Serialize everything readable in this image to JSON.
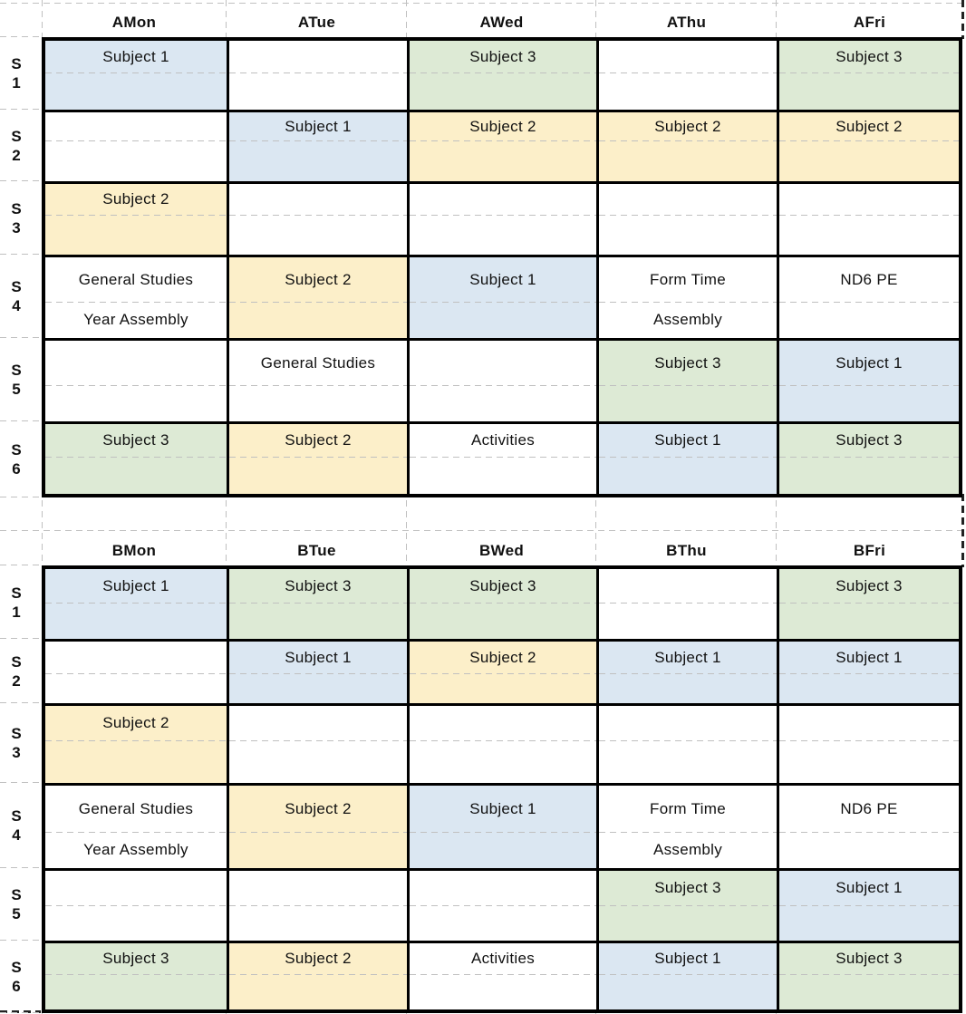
{
  "cell_colors": {
    "blue": "#dbe7f2",
    "green": "#ddead5",
    "yellow": "#fcefc9",
    "white": "#ffffff"
  },
  "tables": [
    {
      "week_label": "A",
      "day_headers": [
        "AMon",
        "ATue",
        "AWed",
        "AThu",
        "AFri"
      ],
      "rows": [
        {
          "period": [
            "S",
            "1"
          ],
          "cells": [
            {
              "lines": [
                "Subject 1"
              ],
              "color": "blue"
            },
            {
              "lines": [],
              "color": "white"
            },
            {
              "lines": [
                "Subject 3"
              ],
              "color": "green"
            },
            {
              "lines": [],
              "color": "white"
            },
            {
              "lines": [
                "Subject 3"
              ],
              "color": "green"
            }
          ]
        },
        {
          "period": [
            "S",
            "2"
          ],
          "cells": [
            {
              "lines": [],
              "color": "white"
            },
            {
              "lines": [
                "Subject 1"
              ],
              "color": "blue"
            },
            {
              "lines": [
                "Subject 2"
              ],
              "color": "yellow"
            },
            {
              "lines": [
                "Subject 2"
              ],
              "color": "yellow"
            },
            {
              "lines": [
                "Subject 2"
              ],
              "color": "yellow"
            }
          ]
        },
        {
          "period": [
            "S",
            "3"
          ],
          "cells": [
            {
              "lines": [
                "Subject 2"
              ],
              "color": "yellow"
            },
            {
              "lines": [],
              "color": "white"
            },
            {
              "lines": [],
              "color": "white"
            },
            {
              "lines": [],
              "color": "white"
            },
            {
              "lines": [],
              "color": "white"
            }
          ]
        },
        {
          "period": [
            "S",
            "4"
          ],
          "cells": [
            {
              "lines": [
                "General Studies",
                "Year Assembly"
              ],
              "color": "white"
            },
            {
              "lines": [
                "Subject 2"
              ],
              "color": "yellow"
            },
            {
              "lines": [
                "Subject 1"
              ],
              "color": "blue"
            },
            {
              "lines": [
                "Form Time",
                "Assembly"
              ],
              "color": "white"
            },
            {
              "lines": [
                "ND6 PE"
              ],
              "color": "white"
            }
          ]
        },
        {
          "period": [
            "S",
            "5"
          ],
          "cells": [
            {
              "lines": [],
              "color": "white"
            },
            {
              "lines": [
                "General Studies"
              ],
              "color": "white"
            },
            {
              "lines": [],
              "color": "white"
            },
            {
              "lines": [
                "Subject 3"
              ],
              "color": "green"
            },
            {
              "lines": [
                "Subject 1"
              ],
              "color": "blue"
            }
          ]
        },
        {
          "period": [
            "S",
            "6"
          ],
          "cells": [
            {
              "lines": [
                "Subject 3"
              ],
              "color": "green"
            },
            {
              "lines": [
                "Subject 2"
              ],
              "color": "yellow"
            },
            {
              "lines": [
                "Activities"
              ],
              "color": "white"
            },
            {
              "lines": [
                "Subject 1"
              ],
              "color": "blue"
            },
            {
              "lines": [
                "Subject 3"
              ],
              "color": "green"
            }
          ]
        }
      ]
    },
    {
      "week_label": "B",
      "day_headers": [
        "BMon",
        "BTue",
        "BWed",
        "BThu",
        "BFri"
      ],
      "rows": [
        {
          "period": [
            "S",
            "1"
          ],
          "cells": [
            {
              "lines": [
                "Subject 1"
              ],
              "color": "blue"
            },
            {
              "lines": [
                "Subject 3"
              ],
              "color": "green"
            },
            {
              "lines": [
                "Subject 3"
              ],
              "color": "green"
            },
            {
              "lines": [],
              "color": "white"
            },
            {
              "lines": [
                "Subject 3"
              ],
              "color": "green"
            }
          ]
        },
        {
          "period": [
            "S",
            "2"
          ],
          "cells": [
            {
              "lines": [],
              "color": "white"
            },
            {
              "lines": [
                "Subject 1"
              ],
              "color": "blue"
            },
            {
              "lines": [
                "Subject 2"
              ],
              "color": "yellow"
            },
            {
              "lines": [
                "Subject 1"
              ],
              "color": "blue"
            },
            {
              "lines": [
                "Subject 1"
              ],
              "color": "blue"
            }
          ]
        },
        {
          "period": [
            "S",
            "3"
          ],
          "cells": [
            {
              "lines": [
                "Subject 2"
              ],
              "color": "yellow"
            },
            {
              "lines": [],
              "color": "white"
            },
            {
              "lines": [],
              "color": "white"
            },
            {
              "lines": [],
              "color": "white"
            },
            {
              "lines": [],
              "color": "white"
            }
          ]
        },
        {
          "period": [
            "S",
            "4"
          ],
          "cells": [
            {
              "lines": [
                "General Studies",
                "Year Assembly"
              ],
              "color": "white"
            },
            {
              "lines": [
                "Subject 2"
              ],
              "color": "yellow"
            },
            {
              "lines": [
                "Subject 1"
              ],
              "color": "blue"
            },
            {
              "lines": [
                "Form Time",
                "Assembly"
              ],
              "color": "white"
            },
            {
              "lines": [
                "ND6 PE"
              ],
              "color": "white"
            }
          ]
        },
        {
          "period": [
            "S",
            "5"
          ],
          "cells": [
            {
              "lines": [],
              "color": "white"
            },
            {
              "lines": [],
              "color": "white"
            },
            {
              "lines": [],
              "color": "white"
            },
            {
              "lines": [
                "Subject 3"
              ],
              "color": "green"
            },
            {
              "lines": [
                "Subject 1"
              ],
              "color": "blue"
            }
          ]
        },
        {
          "period": [
            "S",
            "6"
          ],
          "cells": [
            {
              "lines": [
                "Subject 3"
              ],
              "color": "green"
            },
            {
              "lines": [
                "Subject 2"
              ],
              "color": "yellow"
            },
            {
              "lines": [
                "Activities"
              ],
              "color": "white"
            },
            {
              "lines": [
                "Subject 1"
              ],
              "color": "blue"
            },
            {
              "lines": [
                "Subject 3"
              ],
              "color": "green"
            }
          ]
        }
      ]
    }
  ]
}
